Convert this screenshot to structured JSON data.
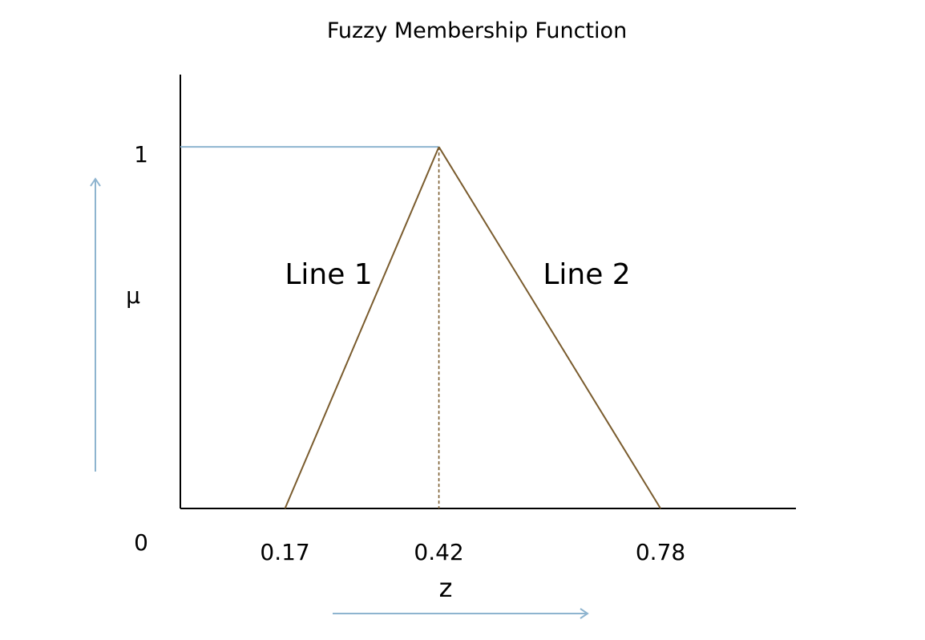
{
  "chart_data": {
    "type": "line",
    "title": "Fuzzy Membership Function",
    "xlabel": "z",
    "ylabel": "μ",
    "x_ticks": [
      "0.17",
      "0.42",
      "0.78"
    ],
    "y_ticks": [
      "0",
      "1"
    ],
    "series": [
      {
        "name": "Line 1",
        "x": [
          0.17,
          0.42
        ],
        "y": [
          0,
          1
        ]
      },
      {
        "name": "Line 2",
        "x": [
          0.42,
          0.78
        ],
        "y": [
          1,
          0
        ]
      }
    ],
    "peak": {
      "x": 0.42,
      "y": 1
    },
    "xlim": [
      0,
      1.0
    ],
    "ylim": [
      0,
      1.2
    ],
    "grid": false,
    "colors": {
      "triangle": "#7a5c2e",
      "guide": "#8eb4cf",
      "axis": "#000000"
    }
  }
}
